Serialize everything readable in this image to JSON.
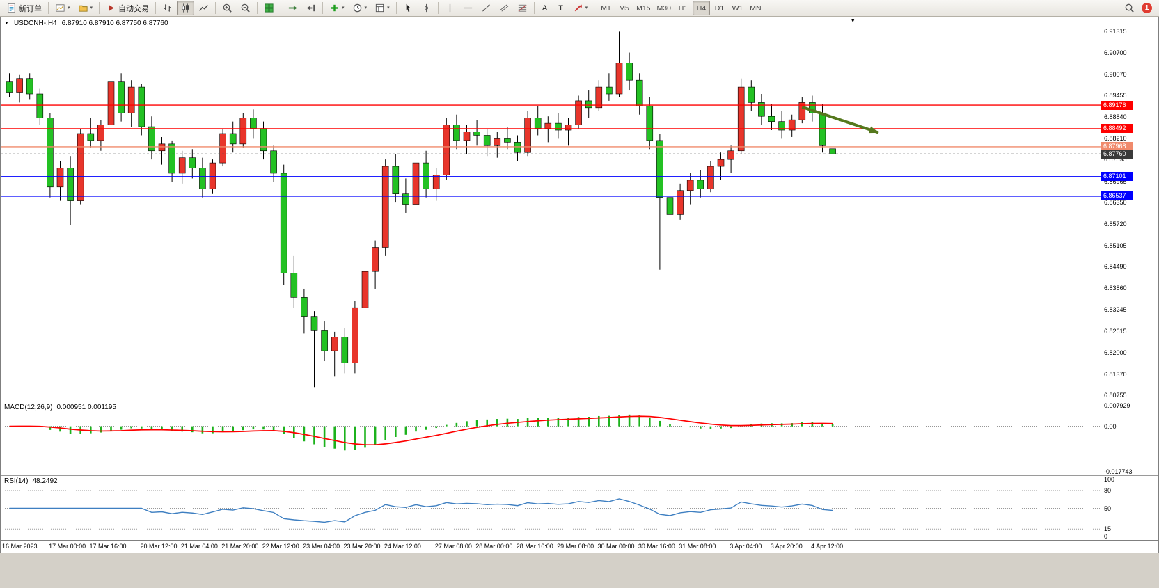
{
  "icons": {
    "chart_caret": "▼",
    "shift_marker": "▼",
    "dropdown_caret": "▾"
  },
  "toolbar": {
    "active_timeframe": "H4",
    "notification_count": "1",
    "items": [
      {
        "name": "new-order-button",
        "icon": "new-order",
        "label": "新订单"
      },
      {
        "sep": true
      },
      {
        "name": "new-chart-button",
        "icon": "new-chart",
        "dropdown": true
      },
      {
        "name": "profiles-button",
        "icon": "profiles",
        "dropdown": true
      },
      {
        "sep": true
      },
      {
        "name": "auto-trading-button",
        "icon": "auto-trading",
        "label": "自动交易"
      },
      {
        "sep": true
      },
      {
        "name": "bar-chart-button",
        "icon": "bar-mode"
      },
      {
        "name": "candlestick-button",
        "icon": "candle-mode",
        "active": true
      },
      {
        "name": "line-chart-button",
        "icon": "line-mode"
      },
      {
        "sep": true
      },
      {
        "name": "zoom-in-button",
        "icon": "zoom-in"
      },
      {
        "name": "zoom-out-button",
        "icon": "zoom-out"
      },
      {
        "sep": true
      },
      {
        "name": "tile-windows-button",
        "icon": "tile-windows"
      },
      {
        "sep": true
      },
      {
        "name": "auto-scroll-button",
        "icon": "auto-scroll"
      },
      {
        "name": "chart-shift-button",
        "icon": "chart-shift"
      },
      {
        "sep": true
      },
      {
        "name": "indicators-button",
        "icon": "indicators-add",
        "dropdown": true
      },
      {
        "name": "periods-button",
        "icon": "periods-clock",
        "dropdown": true
      },
      {
        "name": "templates-button",
        "icon": "templates",
        "dropdown": true
      },
      {
        "sep": true
      },
      {
        "name": "cursor-button",
        "icon": "cursor"
      },
      {
        "name": "crosshair-button",
        "icon": "crosshair"
      },
      {
        "sep": true
      },
      {
        "name": "vertical-line-button",
        "icon": "vline"
      },
      {
        "name": "horizontal-line-button",
        "icon": "hline"
      },
      {
        "name": "trendline-button",
        "icon": "trendline"
      },
      {
        "name": "equidistant-channel-button",
        "icon": "channel"
      },
      {
        "name": "fibonacci-button",
        "icon": "fibo"
      },
      {
        "sep": true
      },
      {
        "name": "text-tool-button",
        "label": "A"
      },
      {
        "name": "text-label-tool-button",
        "label": "T"
      },
      {
        "name": "arrows-tool-button",
        "icon": "arrows-tool",
        "dropdown": true
      },
      {
        "sep": true
      },
      {
        "name": "tf-m1-button",
        "label": "M1",
        "tf": true
      },
      {
        "name": "tf-m5-button",
        "label": "M5",
        "tf": true
      },
      {
        "name": "tf-m15-button",
        "label": "M15",
        "tf": true
      },
      {
        "name": "tf-m30-button",
        "label": "M30",
        "tf": true
      },
      {
        "name": "tf-h1-button",
        "label": "H1",
        "tf": true
      },
      {
        "name": "tf-h4-button",
        "label": "H4",
        "tf": true,
        "active": true
      },
      {
        "name": "tf-d1-button",
        "label": "D1",
        "tf": true
      },
      {
        "name": "tf-w1-button",
        "label": "W1",
        "tf": true
      },
      {
        "name": "tf-mn-button",
        "label": "MN",
        "tf": true
      }
    ],
    "right_items": [
      {
        "name": "search-button",
        "icon": "search"
      },
      {
        "name": "notification-badge",
        "label": "1",
        "badge": true
      }
    ]
  },
  "chart": {
    "title": "USDCNH-,H4",
    "ohlc": "6.87910 6.87910 6.87750 6.87760"
  },
  "chart_data": {
    "type": "candlestick",
    "symbol": "USDCNH-",
    "period": "H4",
    "up_color": "#E8352B",
    "down_color": "#23C123",
    "wick_color": "#000000",
    "price_axis": {
      "max": 6.9172,
      "min": 6.8058,
      "ticks": [
        "6.91315",
        "6.90700",
        "6.90070",
        "6.89455",
        "6.88840",
        "6.88210",
        "6.87595",
        "6.86965",
        "6.86350",
        "6.85720",
        "6.85105",
        "6.84490",
        "6.83860",
        "6.83245",
        "6.82615",
        "6.82000",
        "6.81370",
        "6.80755"
      ]
    },
    "current_price": {
      "value": 6.8776,
      "label": "6.87760",
      "badge_color": "#3A3A3A",
      "line_color": "#555555"
    },
    "hlines": [
      {
        "label": "6.89176",
        "value": 6.89176,
        "color": "#FF0000",
        "width": 1.3
      },
      {
        "label": "6.88492",
        "value": 6.88492,
        "color": "#FF0000",
        "width": 1.3
      },
      {
        "label": "6.87968",
        "value": 6.87968,
        "color": "#F08A6C",
        "width": 1.4
      },
      {
        "label": "6.87101",
        "value": 6.87101,
        "color": "#0000FF",
        "width": 1.6
      },
      {
        "label": "6.86537",
        "value": 6.86537,
        "color": "#0000FF",
        "width": 1.6
      }
    ],
    "trend_arrow": {
      "from": {
        "candle": 78,
        "price": 6.8912
      },
      "to": {
        "candle": 85.5,
        "price": 6.8838
      },
      "color": "#55781D"
    },
    "shift_marker_candle": 83,
    "candles": [
      [
        6.8985,
        6.901,
        6.894,
        6.8955
      ],
      [
        6.8955,
        6.9005,
        6.8925,
        6.8995
      ],
      [
        6.8995,
        6.901,
        6.8935,
        6.895
      ],
      [
        6.895,
        6.8965,
        6.886,
        6.888
      ],
      [
        6.888,
        6.8895,
        6.865,
        6.868
      ],
      [
        6.868,
        6.8755,
        6.864,
        6.8735
      ],
      [
        6.8735,
        6.877,
        6.857,
        6.864
      ],
      [
        6.864,
        6.885,
        6.863,
        6.8835
      ],
      [
        6.8835,
        6.888,
        6.8795,
        6.8815
      ],
      [
        6.8815,
        6.8875,
        6.8785,
        6.886
      ],
      [
        6.886,
        6.9,
        6.885,
        6.8985
      ],
      [
        6.8985,
        6.901,
        6.887,
        6.8895
      ],
      [
        6.8895,
        6.899,
        6.8855,
        6.897
      ],
      [
        6.897,
        6.898,
        6.883,
        6.8855
      ],
      [
        6.8855,
        6.8885,
        6.876,
        6.8785
      ],
      [
        6.8785,
        6.8825,
        6.8745,
        6.8805
      ],
      [
        6.8805,
        6.8815,
        6.8695,
        6.872
      ],
      [
        6.872,
        6.8785,
        6.869,
        6.8765
      ],
      [
        6.8765,
        6.879,
        6.8705,
        6.8735
      ],
      [
        6.8735,
        6.8765,
        6.865,
        6.8675
      ],
      [
        6.8675,
        6.876,
        6.866,
        6.875
      ],
      [
        6.875,
        6.885,
        6.874,
        6.8835
      ],
      [
        6.8835,
        6.887,
        6.878,
        6.8805
      ],
      [
        6.8805,
        6.8895,
        6.8795,
        6.888
      ],
      [
        6.888,
        6.8905,
        6.882,
        6.885
      ],
      [
        6.885,
        6.887,
        6.876,
        6.8785
      ],
      [
        6.8785,
        6.88,
        6.8695,
        6.872
      ],
      [
        6.872,
        6.8745,
        6.8395,
        6.843
      ],
      [
        6.843,
        6.848,
        6.833,
        6.836
      ],
      [
        6.836,
        6.8385,
        6.8255,
        6.8305
      ],
      [
        6.8305,
        6.832,
        6.81,
        6.8265
      ],
      [
        6.8265,
        6.829,
        6.8175,
        6.8205
      ],
      [
        6.8205,
        6.826,
        6.813,
        6.8245
      ],
      [
        6.8245,
        6.827,
        6.814,
        6.817
      ],
      [
        6.817,
        6.835,
        6.814,
        6.833
      ],
      [
        6.833,
        6.8455,
        6.83,
        6.8435
      ],
      [
        6.8435,
        6.8525,
        6.8385,
        6.8505
      ],
      [
        6.8505,
        6.876,
        6.848,
        6.874
      ],
      [
        6.874,
        6.8775,
        6.8635,
        6.866
      ],
      [
        6.866,
        6.8705,
        6.8605,
        6.863
      ],
      [
        6.863,
        6.877,
        6.862,
        6.875
      ],
      [
        6.875,
        6.8785,
        6.865,
        6.8675
      ],
      [
        6.8675,
        6.8735,
        6.864,
        6.8715
      ],
      [
        6.8715,
        6.888,
        6.87,
        6.886
      ],
      [
        6.886,
        6.889,
        6.879,
        6.8815
      ],
      [
        6.8815,
        6.886,
        6.8775,
        6.884
      ],
      [
        6.884,
        6.8875,
        6.88,
        6.883
      ],
      [
        6.883,
        6.885,
        6.877,
        6.88
      ],
      [
        6.88,
        6.884,
        6.8765,
        6.882
      ],
      [
        6.882,
        6.8855,
        6.879,
        6.881
      ],
      [
        6.881,
        6.883,
        6.8755,
        6.878
      ],
      [
        6.878,
        6.89,
        6.877,
        6.888
      ],
      [
        6.888,
        6.8915,
        6.883,
        6.885
      ],
      [
        6.885,
        6.8885,
        6.881,
        6.8865
      ],
      [
        6.8865,
        6.8895,
        6.882,
        6.8845
      ],
      [
        6.8845,
        6.888,
        6.88,
        6.886
      ],
      [
        6.886,
        6.8945,
        6.885,
        6.893
      ],
      [
        6.893,
        6.896,
        6.888,
        6.891
      ],
      [
        6.891,
        6.899,
        6.89,
        6.897
      ],
      [
        6.897,
        6.901,
        6.893,
        6.895
      ],
      [
        6.895,
        6.9131,
        6.894,
        6.904
      ],
      [
        6.904,
        6.907,
        6.896,
        6.899
      ],
      [
        6.899,
        6.901,
        6.889,
        6.8915
      ],
      [
        6.8915,
        6.894,
        6.879,
        6.8815
      ],
      [
        6.8815,
        6.8835,
        6.844,
        6.865
      ],
      [
        6.865,
        6.868,
        6.857,
        6.86
      ],
      [
        6.86,
        6.869,
        6.8585,
        6.867
      ],
      [
        6.867,
        6.872,
        6.863,
        6.87
      ],
      [
        6.87,
        6.873,
        6.865,
        6.8675
      ],
      [
        6.8675,
        6.8755,
        6.8665,
        6.874
      ],
      [
        6.874,
        6.878,
        6.87,
        6.876
      ],
      [
        6.876,
        6.88,
        6.872,
        6.8785
      ],
      [
        6.8785,
        6.8995,
        6.8775,
        6.897
      ],
      [
        6.897,
        6.899,
        6.89,
        6.8925
      ],
      [
        6.8925,
        6.895,
        6.886,
        6.8885
      ],
      [
        6.8885,
        6.892,
        6.8845,
        6.887
      ],
      [
        6.887,
        6.89,
        6.882,
        6.8845
      ],
      [
        6.8845,
        6.889,
        6.8825,
        6.8875
      ],
      [
        6.8875,
        6.894,
        6.8865,
        6.8925
      ],
      [
        6.8925,
        6.8945,
        6.887,
        6.8895
      ],
      [
        6.8895,
        6.892,
        6.878,
        6.88
      ],
      [
        6.8791,
        6.8791,
        6.8775,
        6.8776
      ]
    ],
    "time_labels": [
      {
        "i": 0,
        "t": "16 Mar 2023"
      },
      {
        "i": 6,
        "t": "17 Mar 00:00"
      },
      {
        "i": 10,
        "t": "17 Mar 16:00"
      },
      {
        "i": 15,
        "t": "20 Mar 12:00"
      },
      {
        "i": 19,
        "t": "21 Mar 04:00"
      },
      {
        "i": 23,
        "t": "21 Mar 20:00"
      },
      {
        "i": 27,
        "t": "22 Mar 12:00"
      },
      {
        "i": 31,
        "t": "23 Mar 04:00"
      },
      {
        "i": 35,
        "t": "23 Mar 20:00"
      },
      {
        "i": 39,
        "t": "24 Mar 12:00"
      },
      {
        "i": 44,
        "t": "27 Mar 08:00"
      },
      {
        "i": 48,
        "t": "28 Mar 00:00"
      },
      {
        "i": 52,
        "t": "28 Mar 16:00"
      },
      {
        "i": 56,
        "t": "29 Mar 08:00"
      },
      {
        "i": 60,
        "t": "30 Mar 00:00"
      },
      {
        "i": 64,
        "t": "30 Mar 16:00"
      },
      {
        "i": 68,
        "t": "31 Mar 08:00"
      },
      {
        "i": 73,
        "t": "3 Apr 04:00"
      },
      {
        "i": 77,
        "t": "3 Apr 20:00"
      },
      {
        "i": 81,
        "t": "4 Apr 12:00"
      }
    ],
    "macd": {
      "name": "MACD(12,26,9)",
      "values": "0.000951 0.001195",
      "params": [
        12,
        26,
        9
      ],
      "histogram_color": "#1CB21C",
      "signal_color": "#FF0000",
      "axis": {
        "max": 0.007929,
        "min": -0.017743
      },
      "axis_labels": [
        {
          "text": "0.007929",
          "value": 0.007929
        },
        {
          "text": "0.00",
          "value": 0
        },
        {
          "text": "-0.017743",
          "value": -0.017743
        }
      ]
    },
    "rsi": {
      "name": "RSI(14)",
      "value": "48.2492",
      "period": 14,
      "current": 48.2492,
      "line_color": "#3E7FC1",
      "level_lines": [
        80,
        50,
        15
      ],
      "axis_labels": [
        {
          "text": "100",
          "value": 100
        },
        {
          "text": "80",
          "value": 80
        },
        {
          "text": "50",
          "value": 50
        },
        {
          "text": "15",
          "value": 15
        },
        {
          "text": "0",
          "value": 0
        }
      ]
    }
  }
}
